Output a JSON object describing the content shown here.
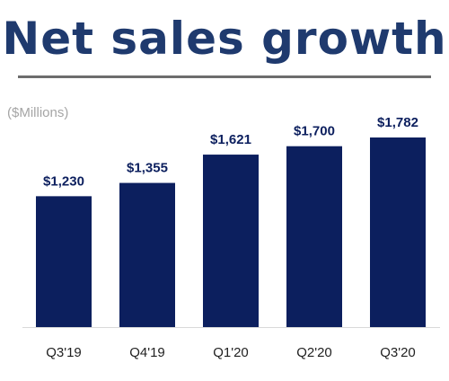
{
  "title": "Net sales growth",
  "unit_label": "($Millions)",
  "colors": {
    "title": "#1f3a6e",
    "bar": "#0c1f5e",
    "rule": "#6d6d6d",
    "unit": "#a5a5a5",
    "axis": "#d9d9d9",
    "label": "#0c1f5e",
    "tick": "#222222"
  },
  "chart_data": {
    "type": "bar",
    "categories": [
      "Q3'19",
      "Q4'19",
      "Q1'20",
      "Q2'20",
      "Q3'20"
    ],
    "values": [
      1230,
      1355,
      1621,
      1700,
      1782
    ],
    "data_labels": [
      "$1,230",
      "$1,355",
      "$1,621",
      "$1,700",
      "$1,782"
    ],
    "title": "Net sales growth",
    "ylabel": "($Millions)",
    "ylim": [
      0,
      1782
    ],
    "grid": false
  }
}
